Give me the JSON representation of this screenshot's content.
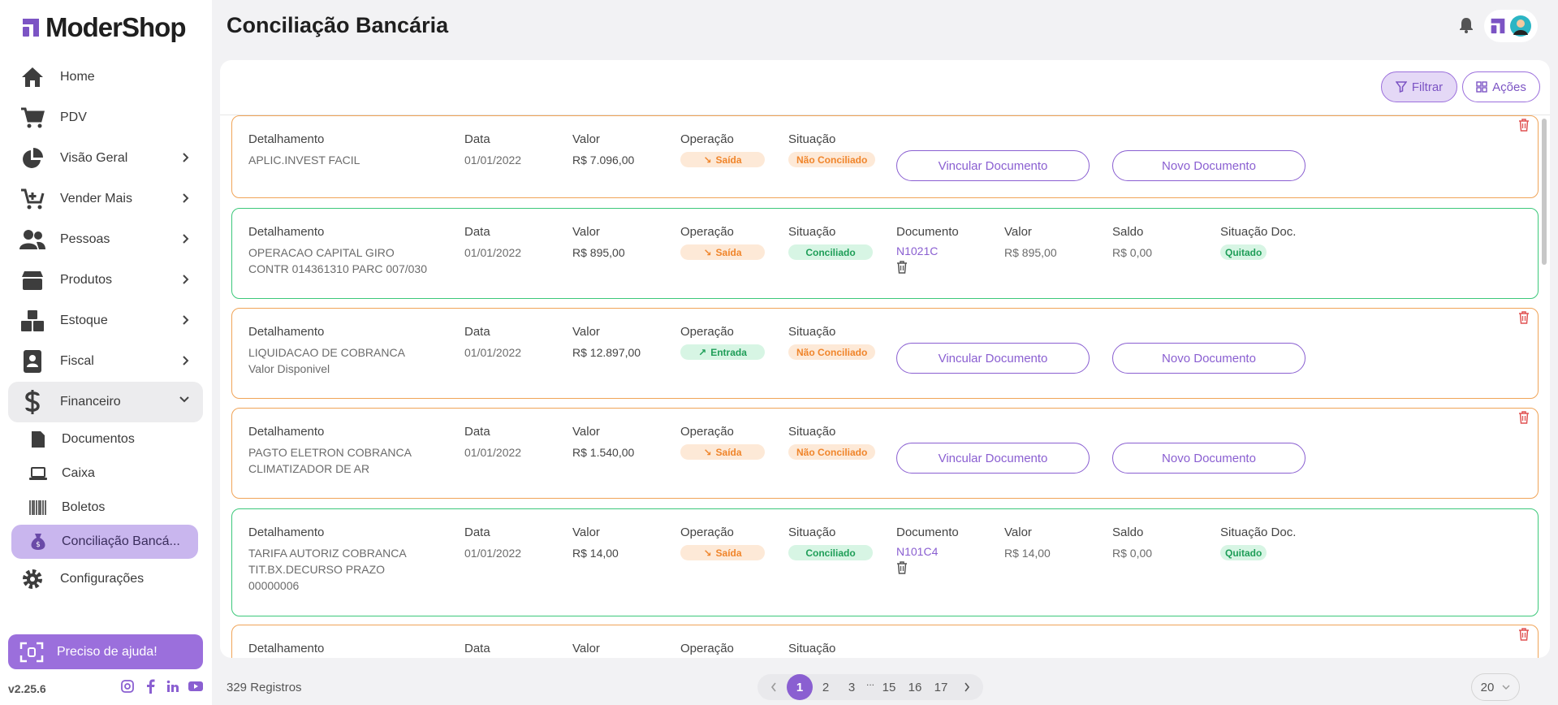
{
  "app": {
    "brand": "ModerShop",
    "version": "v2.25.6",
    "accent": "#8a5fd1"
  },
  "header": {
    "title": "Conciliação Bancária"
  },
  "sidebar": {
    "items": [
      {
        "label": "Home",
        "icon": "home-icon"
      },
      {
        "label": "PDV",
        "icon": "cart-icon"
      },
      {
        "label": "Visão Geral",
        "icon": "pie-chart-icon"
      },
      {
        "label": "Vender Mais",
        "icon": "cart-plus-icon"
      },
      {
        "label": "Pessoas",
        "icon": "people-icon"
      },
      {
        "label": "Produtos",
        "icon": "box-icon"
      },
      {
        "label": "Estoque",
        "icon": "boxes-icon"
      },
      {
        "label": "Fiscal",
        "icon": "badge-icon"
      },
      {
        "label": "Financeiro",
        "icon": "dollar-icon"
      }
    ],
    "sub_items": [
      {
        "label": "Documentos",
        "icon": "document-icon"
      },
      {
        "label": "Caixa",
        "icon": "laptop-icon"
      },
      {
        "label": "Boletos",
        "icon": "barcode-icon"
      },
      {
        "label": "Conciliação Bancá...",
        "icon": "money-bag-icon"
      }
    ],
    "settings": {
      "label": "Configurações",
      "icon": "gear-icon"
    },
    "help": "Preciso de ajuda!"
  },
  "toolbar": {
    "filter_label": "Filtrar",
    "actions_label": "Ações"
  },
  "labels": {
    "detail": "Detalhamento",
    "date": "Data",
    "value": "Valor",
    "operation": "Operação",
    "status": "Situação",
    "document": "Documento",
    "doc_value": "Valor",
    "balance": "Saldo",
    "doc_status": "Situação Doc.",
    "link_doc": "Vincular Documento",
    "new_doc": "Novo Documento"
  },
  "rows": [
    {
      "detail": [
        "APLIC.INVEST FACIL"
      ],
      "date": "01/01/2022",
      "value": "R$ 7.096,00",
      "operation": "Saída",
      "status": "Não Conciliado"
    },
    {
      "detail": [
        "OPERACAO CAPITAL GIRO",
        "CONTR 014361310 PARC 007/030"
      ],
      "date": "01/01/2022",
      "value": "R$ 895,00",
      "operation": "Saída",
      "status": "Conciliado",
      "document": "N1021C",
      "doc_value": "R$ 895,00",
      "balance": "R$ 0,00",
      "doc_status": "Quitado"
    },
    {
      "detail": [
        "LIQUIDACAO DE COBRANCA",
        "Valor Disponivel"
      ],
      "date": "01/01/2022",
      "value": "R$ 12.897,00",
      "operation": "Entrada",
      "status": "Não Conciliado"
    },
    {
      "detail": [
        "PAGTO ELETRON COBRANCA",
        "CLIMATIZADOR DE AR"
      ],
      "date": "01/01/2022",
      "value": "R$ 1.540,00",
      "operation": "Saída",
      "status": "Não Conciliado"
    },
    {
      "detail": [
        "TARIFA AUTORIZ COBRANCA",
        "TIT.BX.DECURSO PRAZO",
        "00000006"
      ],
      "date": "01/01/2022",
      "value": "R$ 14,00",
      "operation": "Saída",
      "status": "Conciliado",
      "document": "N101C4",
      "doc_value": "R$ 14,00",
      "balance": "R$ 0,00",
      "doc_status": "Quitado"
    }
  ],
  "footer": {
    "records": "329 Registros",
    "pages": [
      "1",
      "2",
      "3",
      "15",
      "16",
      "17"
    ],
    "current_page": "1",
    "ellipsis": "...",
    "page_size": "20"
  }
}
